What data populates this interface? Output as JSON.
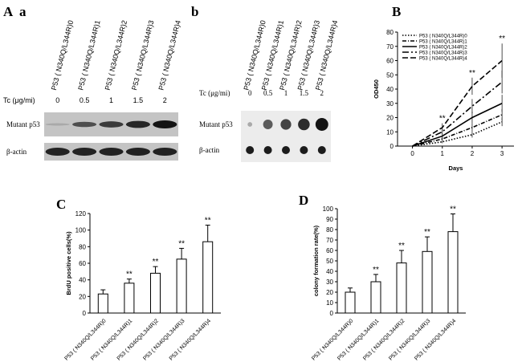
{
  "blots": {
    "a": {
      "panel": "A",
      "sub": "a",
      "columns": [
        "P53 ( N340Q/L344R)0",
        "P53 ( N340Q/L344R)1",
        "P53 ( N340Q/L344R)2",
        "P53 ( N340Q/L344R)3",
        "P53 ( N340Q/L344R)4"
      ],
      "tc_label": "Tc (μg/mi)",
      "tc": [
        "0",
        "0.5",
        "1",
        "1.5",
        "2"
      ],
      "rows": [
        "Mutant p53",
        "β-actin"
      ]
    },
    "b": {
      "sub": "b",
      "columns": [
        "P53 ( N340Q/L344R)0",
        "P53 ( N340Q/L344R)1",
        "P53 ( N340Q/L344R)2",
        "P53 ( N340Q/L344R)3",
        "P53 ( N340Q/L344R)4"
      ],
      "tc_label": "Tc (μg/mi)",
      "tc": [
        "0",
        "0.5",
        "1",
        "1.5",
        "2"
      ],
      "rows": [
        "Mutant p53",
        "β-actin"
      ]
    }
  },
  "chart_data": [
    {
      "type": "line",
      "panel": "B",
      "xlabel": "Days",
      "ylabel": "OD450",
      "x": [
        0,
        1,
        2,
        3
      ],
      "xlim": [
        -0.5,
        3.4
      ],
      "xticks": [
        0,
        1,
        2,
        3
      ],
      "ylim": [
        0,
        80
      ],
      "yticks": [
        0,
        10,
        20,
        30,
        40,
        50,
        60,
        70,
        80
      ],
      "series": [
        {
          "name": "P53 ( N340Q/L344R)0",
          "style": "dotted",
          "color": "#000000",
          "values": [
            0,
            3,
            8,
            17
          ],
          "errors": [
            0,
            1,
            2,
            3
          ]
        },
        {
          "name": "P53 ( N340Q/L344R)1",
          "style": "dash-dot-short",
          "color": "#000000",
          "values": [
            0,
            5,
            13,
            22
          ],
          "errors": [
            0,
            1,
            3,
            4
          ]
        },
        {
          "name": "P53 ( N340Q/L344R)2",
          "style": "solid",
          "color": "#000000",
          "values": [
            0,
            7,
            20,
            30
          ],
          "errors": [
            0,
            2,
            4,
            6
          ]
        },
        {
          "name": "P53 ( N340Q/L344R)3",
          "style": "dash-dot",
          "color": "#000000",
          "values": [
            0,
            10,
            28,
            45
          ],
          "errors": [
            0,
            2,
            5,
            8
          ]
        },
        {
          "name": "P53 ( N340Q/L344R)4",
          "style": "dashed",
          "color": "#000000",
          "values": [
            0,
            13,
            42,
            60
          ],
          "errors": [
            0,
            3,
            6,
            12
          ]
        }
      ],
      "significance": [
        null,
        "**",
        "**",
        "**"
      ]
    },
    {
      "type": "bar",
      "panel": "C",
      "ylabel": "BrdU positive cells(%)",
      "categories": [
        "P53 ( N340Q/L344R)0",
        "P53 ( N340Q/L344R)1",
        "P53 ( N340Q/L344R)2",
        "P53 ( N340Q/L344R)3",
        "P53 ( N340Q/L344R)4"
      ],
      "values": [
        23,
        36,
        48,
        65,
        86
      ],
      "errors": [
        5,
        5,
        8,
        13,
        20
      ],
      "ylim": [
        0,
        120
      ],
      "yticks": [
        0,
        20,
        40,
        60,
        80,
        100,
        120
      ],
      "significance": [
        null,
        "**",
        "**",
        "**",
        "**"
      ]
    },
    {
      "type": "bar",
      "panel": "D",
      "ylabel": "colony formation rate(%)",
      "categories": [
        "P53 ( N340Q/L344R)0",
        "P53 ( N340Q/L344R)1",
        "P53 ( N340Q/L344R)2",
        "P53 ( N340Q/L344R)3",
        "P53 ( N340Q/L344R)4"
      ],
      "values": [
        20,
        30,
        48,
        59,
        78
      ],
      "errors": [
        4,
        7,
        12,
        14,
        17
      ],
      "ylim": [
        0,
        100
      ],
      "yticks": [
        0,
        10,
        20,
        30,
        40,
        50,
        60,
        70,
        80,
        90,
        100
      ],
      "significance": [
        null,
        "**",
        "**",
        "**",
        "**"
      ]
    }
  ]
}
